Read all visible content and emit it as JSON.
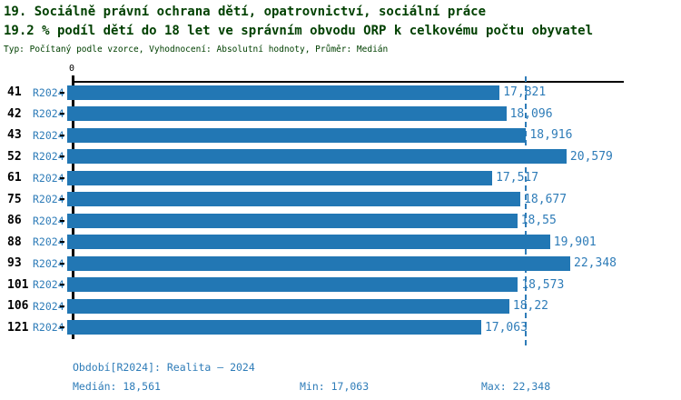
{
  "header": {
    "title": "19. Sociálně právní ochrana dětí, opatrovnictví, sociální práce",
    "subtitle": "19.2 % podíl dětí do 18 let ve správním obvodu ORP k celkovému počtu obyvatel",
    "meta": "Typ: Počítaný podle vzorce, Vyhodnocení: Absolutní hodnoty, Průměr: Medián"
  },
  "chart_data": {
    "type": "bar",
    "orientation": "horizontal",
    "title": "19.2 % podíl dětí do 18 let ve správním obvodu ORP k celkovému počtu obyvatel",
    "categories": [
      "41",
      "42",
      "43",
      "52",
      "61",
      "75",
      "86",
      "88",
      "93",
      "101",
      "106",
      "121"
    ],
    "row_period_label": "R2024",
    "series": [
      {
        "name": "R2024",
        "values": [
          17.821,
          18.096,
          18.916,
          20.579,
          17.517,
          18.677,
          18.55,
          19.901,
          22.348,
          18.573,
          18.22,
          17.063
        ]
      }
    ],
    "value_labels": [
      "17,821",
      "18,096",
      "18,916",
      "20,579",
      "17,517",
      "18,677",
      "18,55",
      "19,901",
      "22,348",
      "18,573",
      "18,22",
      "17,063"
    ],
    "axis_zero_label": "0",
    "xlim": [
      0,
      22.64
    ],
    "median": 18.561,
    "min": 17.063,
    "max": 22.348,
    "grid": false,
    "median_line": true,
    "legend_position": "none"
  },
  "footer": {
    "period": "Období[R2024]: Realita – 2024",
    "median": "Medián: 18,561",
    "min": "Min: 17,063",
    "max": "Max: 22,348"
  },
  "colors": {
    "bar": "#2277b4",
    "blue_text": "#2e7cb8",
    "title_text": "#004000",
    "axis": "#000000",
    "background": "#ffffff"
  }
}
